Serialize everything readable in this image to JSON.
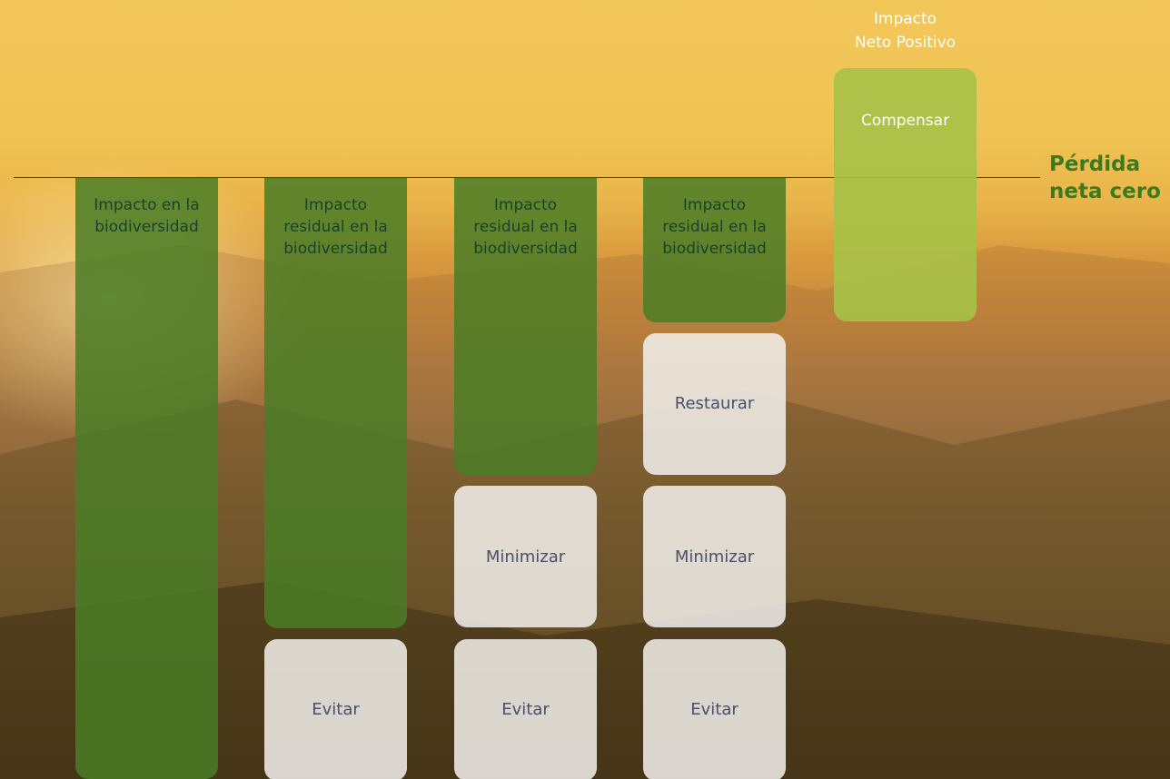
{
  "threshold_label": "Pérdida\nneta cero",
  "columns": [
    {
      "impact": "Impacto en la\nbiodiversidad",
      "actions": []
    },
    {
      "impact": "Impacto\nresidual en la\nbiodiversidad",
      "actions": [
        "Evitar"
      ]
    },
    {
      "impact": "Impacto\nresidual en la\nbiodiversidad",
      "actions": [
        "Minimizar",
        "Evitar"
      ]
    },
    {
      "impact": "Impacto\nresidual en la\nbiodiversidad",
      "actions": [
        "Restaurar",
        "Minimizar",
        "Evitar"
      ]
    }
  ],
  "positive": {
    "label": "Impacto\nNeto Positivo",
    "action": "Compensar"
  }
}
